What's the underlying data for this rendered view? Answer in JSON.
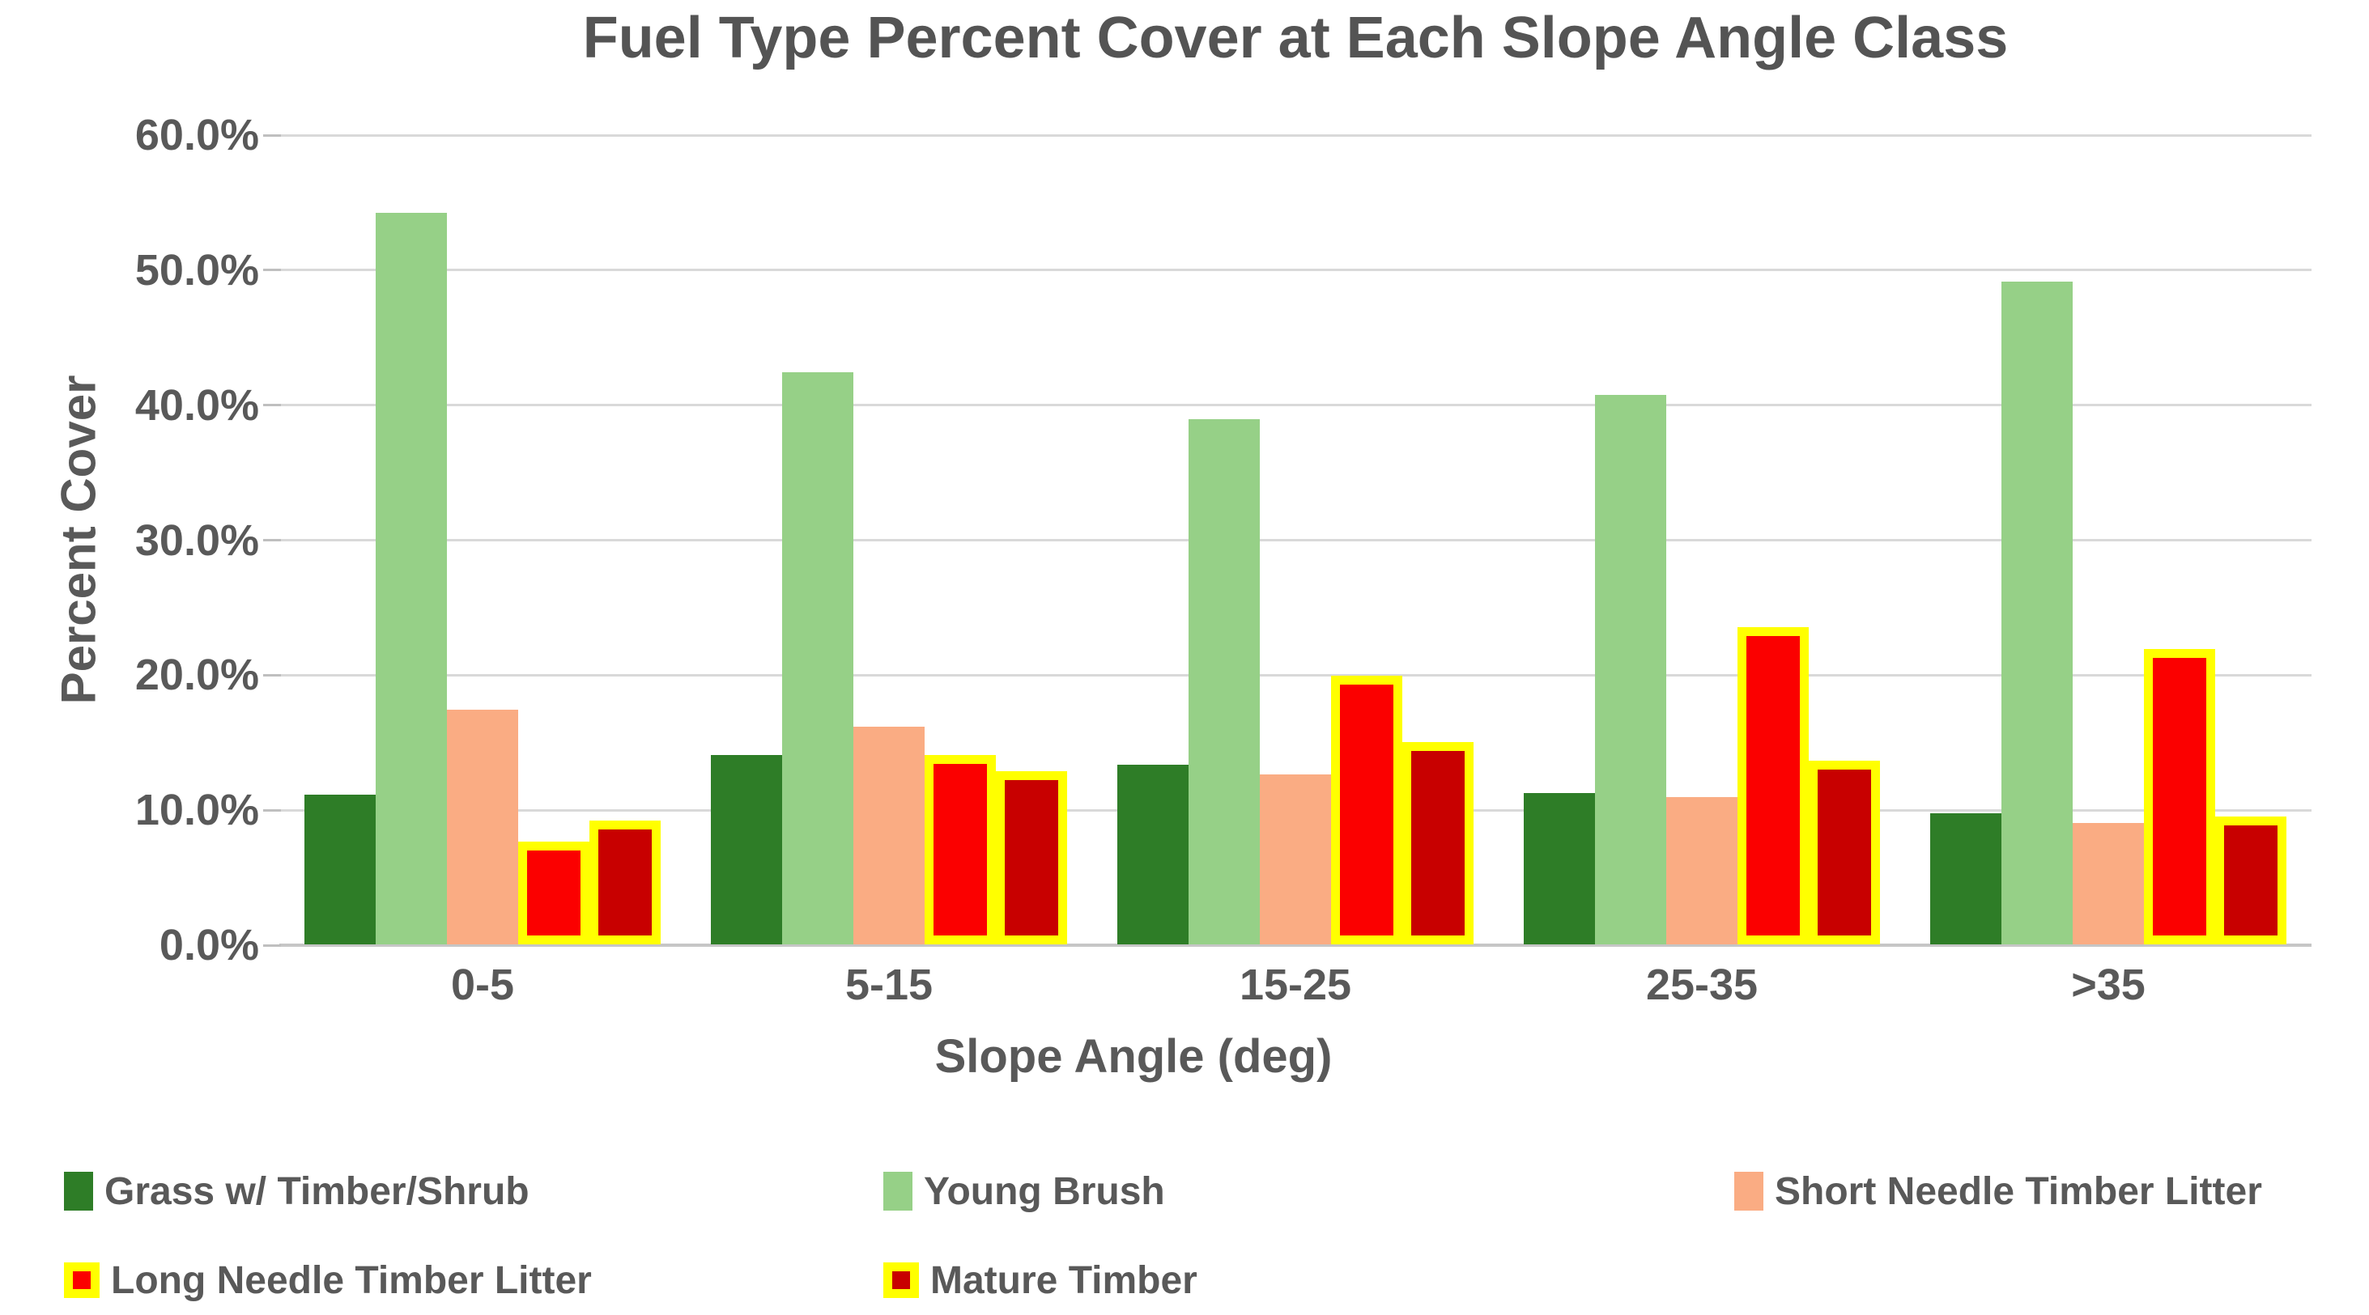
{
  "chart_data": {
    "type": "bar",
    "title": "Fuel Type Percent Cover at Each Slope Angle Class",
    "xlabel": "Slope Angle (deg)",
    "ylabel": "Percent Cover",
    "categories": [
      "0-5",
      "5-15",
      "15-25",
      "25-35",
      ">35"
    ],
    "series": [
      {
        "name": "Grass w/ Timber/Shrub",
        "color": "#2E7D27",
        "border": null,
        "values": [
          11.1,
          14.0,
          13.3,
          11.2,
          9.7
        ]
      },
      {
        "name": "Young Brush",
        "color": "#96D087",
        "border": null,
        "values": [
          54.2,
          42.4,
          38.9,
          40.7,
          49.1
        ]
      },
      {
        "name": "Short Needle Timber Litter",
        "color": "#FAAC83",
        "border": null,
        "values": [
          17.4,
          16.1,
          12.6,
          10.9,
          9.0
        ]
      },
      {
        "name": "Long Needle Timber Litter",
        "color": "#FB0000",
        "border": "#FFFF00",
        "values": [
          7.6,
          14.0,
          19.9,
          23.5,
          21.9
        ]
      },
      {
        "name": "Mature Timber",
        "color": "#C80000",
        "border": "#FFFF00",
        "values": [
          9.2,
          12.8,
          15.0,
          13.6,
          9.5
        ]
      }
    ],
    "ylim": [
      0,
      60
    ],
    "ytick_step": 10,
    "ytick_labels": [
      "0.0%",
      "10.0%",
      "20.0%",
      "30.0%",
      "40.0%",
      "50.0%",
      "60.0%"
    ],
    "grid": "horizontal-only",
    "legend_position": "bottom"
  },
  "colors": {
    "title_text": "#545454",
    "axis_text": "#595959",
    "gridline": "#D9D9D9",
    "axis_line": "#C6C6C6",
    "background": "#FFFFFF",
    "legend_border_accent": "#FFFF00"
  }
}
